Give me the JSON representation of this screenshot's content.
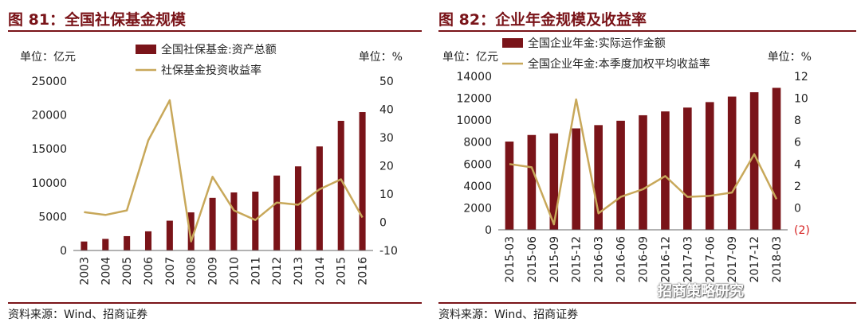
{
  "left": {
    "title": "图 81：全国社保基金规模",
    "source": "资料来源：Wind、招商证券"
  },
  "right": {
    "title": "图 82：企业年金规模及收益率",
    "source": "资料来源：Wind、招商证券"
  },
  "watermark": "招商策略研究",
  "chart_data": [
    {
      "type": "bar",
      "categories": [
        "2003",
        "2004",
        "2005",
        "2006",
        "2007",
        "2008",
        "2009",
        "2010",
        "2011",
        "2012",
        "2013",
        "2014",
        "2015",
        "2016"
      ],
      "left_unit": "单位：亿元",
      "right_unit": "单位：%",
      "ylim": [
        0,
        25000
      ],
      "yticks": [
        "0",
        "5000",
        "10000",
        "15000",
        "20000",
        "25000"
      ],
      "y2lim": [
        -10,
        50
      ],
      "y2ticks": [
        "-10",
        "0",
        "10",
        "20",
        "30",
        "40",
        "50"
      ],
      "legend_position": "top",
      "series": [
        {
          "name": "全国社保基金:资产总额",
          "type": "bar",
          "axis": "left",
          "color": "#7a1419",
          "values": [
            1325,
            1711,
            2118,
            2828,
            4397,
            5624,
            7767,
            8567,
            8688,
            11060,
            12416,
            15356,
            19138,
            20423
          ]
        },
        {
          "name": "社保基金投资收益率",
          "type": "line",
          "axis": "right",
          "color": "#c8a85a",
          "values": [
            3.6,
            2.6,
            4.2,
            29.0,
            43.2,
            -6.8,
            16.1,
            4.2,
            0.8,
            7.0,
            6.2,
            11.7,
            15.2,
            1.7
          ]
        }
      ]
    },
    {
      "type": "bar",
      "categories": [
        "2015-03",
        "2015-06",
        "2015-09",
        "2015-12",
        "2016-03",
        "2016-06",
        "2016-09",
        "2016-12",
        "2017-03",
        "2017-06",
        "2017-09",
        "2017-12",
        "2018-03"
      ],
      "left_unit": "单位：亿元",
      "right_unit": "单位：%",
      "ylim": [
        0,
        14000
      ],
      "yticks": [
        "0",
        "2000",
        "4000",
        "6000",
        "8000",
        "10000",
        "12000",
        "14000"
      ],
      "y2lim": [
        -2,
        12
      ],
      "y2ticks": [
        "(2)",
        "0",
        "2",
        "4",
        "6",
        "8",
        "10",
        "12"
      ],
      "legend_position": "top",
      "series": [
        {
          "name": "全国企业年金:实际运作金额",
          "type": "bar",
          "axis": "left",
          "color": "#7a1419",
          "values": [
            8050,
            8650,
            8800,
            9250,
            9550,
            9950,
            10450,
            10800,
            11150,
            11650,
            12150,
            12550,
            12950
          ]
        },
        {
          "name": "全国企业年金:本季度加权平均收益率",
          "type": "line",
          "axis": "right",
          "color": "#c8a85a",
          "values": [
            4.0,
            3.7,
            -1.5,
            9.9,
            -0.5,
            1.0,
            1.7,
            2.9,
            1.0,
            1.1,
            1.4,
            4.9,
            0.8
          ]
        }
      ]
    }
  ]
}
